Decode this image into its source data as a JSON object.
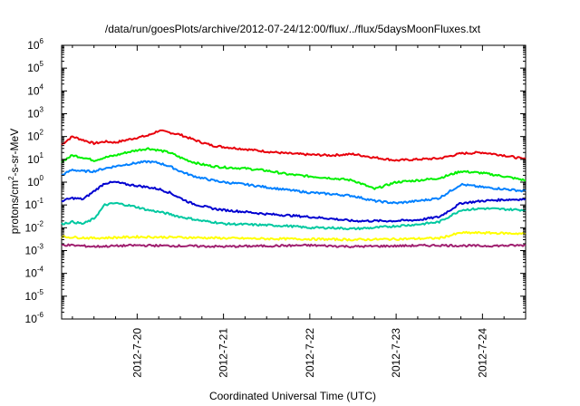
{
  "chart_data": {
    "type": "line",
    "title": "/data/run/goesPlots/archive/2012-07-24/12:00/flux/../flux/5daysMoonFluxes.txt",
    "xlabel": "Coordinated Universal Time (UTC)",
    "ylabel": {
      "base": "protons/cm",
      "sup": "2",
      "rest": "-s-sr-MeV"
    },
    "y_scale": "log",
    "ylim": [
      1e-06,
      1000000.0
    ],
    "xlim": [
      "2012-07-19T03:00",
      "2012-07-24T12:00"
    ],
    "grid": false,
    "legend": "none",
    "y_ticks": [
      {
        "base": "10",
        "exp": "-6"
      },
      {
        "base": "10",
        "exp": "-5"
      },
      {
        "base": "10",
        "exp": "-4"
      },
      {
        "base": "10",
        "exp": "-3"
      },
      {
        "base": "10",
        "exp": "-2"
      },
      {
        "base": "10",
        "exp": "-1"
      },
      {
        "base": "10",
        "exp": "0"
      },
      {
        "base": "10",
        "exp": "1"
      },
      {
        "base": "10",
        "exp": "2"
      },
      {
        "base": "10",
        "exp": "3"
      },
      {
        "base": "10",
        "exp": "4"
      },
      {
        "base": "10",
        "exp": "5"
      },
      {
        "base": "10",
        "exp": "6"
      }
    ],
    "x_ticks": [
      {
        "label": "2012-7-20",
        "at": "2012-07-20T00:00"
      },
      {
        "label": "2012-7-21",
        "at": "2012-07-21T00:00"
      },
      {
        "label": "2012-7-22",
        "at": "2012-07-22T00:00"
      },
      {
        "label": "2012-7-23",
        "at": "2012-07-23T00:00"
      },
      {
        "label": "2012-7-24",
        "at": "2012-07-24T00:00"
      }
    ],
    "series": [
      {
        "color": "#e8000b",
        "x": [
          "2012-07-19T03:00",
          "2012-07-19T06:00",
          "2012-07-19T09:00",
          "2012-07-19T12:00",
          "2012-07-19T15:00",
          "2012-07-19T18:00",
          "2012-07-19T21:00",
          "2012-07-20T00:00",
          "2012-07-20T03:00",
          "2012-07-20T06:00",
          "2012-07-20T09:00",
          "2012-07-20T12:00",
          "2012-07-20T15:00",
          "2012-07-20T18:00",
          "2012-07-20T21:00",
          "2012-07-21T00:00",
          "2012-07-21T06:00",
          "2012-07-21T12:00",
          "2012-07-21T18:00",
          "2012-07-22T00:00",
          "2012-07-22T06:00",
          "2012-07-22T12:00",
          "2012-07-22T18:00",
          "2012-07-23T00:00",
          "2012-07-23T06:00",
          "2012-07-23T12:00",
          "2012-07-23T18:00",
          "2012-07-24T00:00",
          "2012-07-24T06:00",
          "2012-07-24T12:00"
        ],
        "y": [
          45,
          100,
          70,
          50,
          60,
          55,
          70,
          90,
          110,
          180,
          150,
          120,
          80,
          55,
          40,
          35,
          28,
          22,
          18,
          16,
          15,
          17,
          12,
          9,
          10,
          11,
          18,
          20,
          15,
          10
        ]
      },
      {
        "color": "#00f000",
        "x": [
          "2012-07-19T03:00",
          "2012-07-19T06:00",
          "2012-07-19T09:00",
          "2012-07-19T12:00",
          "2012-07-19T15:00",
          "2012-07-19T18:00",
          "2012-07-19T21:00",
          "2012-07-20T00:00",
          "2012-07-20T03:00",
          "2012-07-20T06:00",
          "2012-07-20T09:00",
          "2012-07-20T12:00",
          "2012-07-20T15:00",
          "2012-07-20T18:00",
          "2012-07-20T21:00",
          "2012-07-21T00:00",
          "2012-07-21T06:00",
          "2012-07-21T12:00",
          "2012-07-21T18:00",
          "2012-07-22T00:00",
          "2012-07-22T06:00",
          "2012-07-22T12:00",
          "2012-07-22T18:00",
          "2012-07-23T00:00",
          "2012-07-23T06:00",
          "2012-07-23T12:00",
          "2012-07-23T18:00",
          "2012-07-24T00:00",
          "2012-07-24T06:00",
          "2012-07-24T12:00"
        ],
        "y": [
          8,
          15,
          12,
          9,
          12,
          15,
          20,
          25,
          30,
          25,
          20,
          12,
          8,
          6,
          5,
          4.5,
          4,
          3.2,
          2.2,
          1.8,
          1.5,
          1.2,
          0.5,
          1,
          1.2,
          1.5,
          3,
          2.5,
          1.8,
          1.2
        ]
      },
      {
        "color": "#0080ff",
        "x": [
          "2012-07-19T03:00",
          "2012-07-19T06:00",
          "2012-07-19T09:00",
          "2012-07-19T12:00",
          "2012-07-19T15:00",
          "2012-07-19T18:00",
          "2012-07-19T21:00",
          "2012-07-20T00:00",
          "2012-07-20T03:00",
          "2012-07-20T06:00",
          "2012-07-20T09:00",
          "2012-07-20T12:00",
          "2012-07-20T15:00",
          "2012-07-20T18:00",
          "2012-07-20T21:00",
          "2012-07-21T00:00",
          "2012-07-21T06:00",
          "2012-07-21T12:00",
          "2012-07-21T18:00",
          "2012-07-22T00:00",
          "2012-07-22T06:00",
          "2012-07-22T12:00",
          "2012-07-22T18:00",
          "2012-07-23T00:00",
          "2012-07-23T06:00",
          "2012-07-23T12:00",
          "2012-07-23T18:00",
          "2012-07-24T00:00",
          "2012-07-24T06:00",
          "2012-07-24T12:00"
        ],
        "y": [
          2,
          3.5,
          3,
          3,
          4,
          5,
          6,
          7,
          8,
          7,
          5,
          3,
          2,
          1.5,
          1.2,
          1,
          0.8,
          0.6,
          0.45,
          0.35,
          0.3,
          0.25,
          0.15,
          0.12,
          0.15,
          0.2,
          0.8,
          0.6,
          0.5,
          0.4
        ]
      },
      {
        "color": "#0000d0",
        "x": [
          "2012-07-19T03:00",
          "2012-07-19T06:00",
          "2012-07-19T09:00",
          "2012-07-19T12:00",
          "2012-07-19T15:00",
          "2012-07-19T18:00",
          "2012-07-19T21:00",
          "2012-07-20T00:00",
          "2012-07-20T03:00",
          "2012-07-20T06:00",
          "2012-07-20T09:00",
          "2012-07-20T12:00",
          "2012-07-20T15:00",
          "2012-07-20T18:00",
          "2012-07-20T21:00",
          "2012-07-21T00:00",
          "2012-07-21T06:00",
          "2012-07-21T12:00",
          "2012-07-21T18:00",
          "2012-07-22T00:00",
          "2012-07-22T06:00",
          "2012-07-22T12:00",
          "2012-07-22T18:00",
          "2012-07-23T00:00",
          "2012-07-23T06:00",
          "2012-07-23T12:00",
          "2012-07-23T18:00",
          "2012-07-24T00:00",
          "2012-07-24T06:00",
          "2012-07-24T12:00"
        ],
        "y": [
          0.15,
          0.2,
          0.18,
          0.4,
          0.9,
          1.0,
          0.8,
          0.7,
          0.6,
          0.5,
          0.35,
          0.2,
          0.12,
          0.09,
          0.07,
          0.06,
          0.05,
          0.04,
          0.035,
          0.03,
          0.025,
          0.02,
          0.02,
          0.02,
          0.022,
          0.03,
          0.12,
          0.15,
          0.17,
          0.18
        ]
      },
      {
        "color": "#00c8a0",
        "x": [
          "2012-07-19T03:00",
          "2012-07-19T06:00",
          "2012-07-19T09:00",
          "2012-07-19T12:00",
          "2012-07-19T15:00",
          "2012-07-19T18:00",
          "2012-07-19T21:00",
          "2012-07-20T00:00",
          "2012-07-20T03:00",
          "2012-07-20T06:00",
          "2012-07-20T09:00",
          "2012-07-20T12:00",
          "2012-07-20T15:00",
          "2012-07-20T18:00",
          "2012-07-20T21:00",
          "2012-07-21T00:00",
          "2012-07-21T06:00",
          "2012-07-21T12:00",
          "2012-07-21T18:00",
          "2012-07-22T00:00",
          "2012-07-22T06:00",
          "2012-07-22T12:00",
          "2012-07-22T18:00",
          "2012-07-23T00:00",
          "2012-07-23T06:00",
          "2012-07-23T12:00",
          "2012-07-23T18:00",
          "2012-07-24T00:00",
          "2012-07-24T06:00",
          "2012-07-24T12:00"
        ],
        "y": [
          0.015,
          0.018,
          0.015,
          0.025,
          0.1,
          0.12,
          0.1,
          0.08,
          0.06,
          0.05,
          0.04,
          0.03,
          0.025,
          0.02,
          0.018,
          0.015,
          0.014,
          0.013,
          0.012,
          0.01,
          0.01,
          0.009,
          0.01,
          0.012,
          0.014,
          0.018,
          0.06,
          0.07,
          0.065,
          0.06
        ]
      },
      {
        "color": "#ffff00",
        "x": [
          "2012-07-19T03:00",
          "2012-07-19T12:00",
          "2012-07-20T00:00",
          "2012-07-20T12:00",
          "2012-07-21T00:00",
          "2012-07-21T12:00",
          "2012-07-22T00:00",
          "2012-07-22T12:00",
          "2012-07-23T00:00",
          "2012-07-23T12:00",
          "2012-07-23T18:00",
          "2012-07-24T00:00",
          "2012-07-24T12:00"
        ],
        "y": [
          0.004,
          0.0035,
          0.004,
          0.0038,
          0.0035,
          0.0033,
          0.0032,
          0.003,
          0.0032,
          0.0035,
          0.006,
          0.006,
          0.0055
        ]
      },
      {
        "color": "#a02070",
        "x": [
          "2012-07-19T03:00",
          "2012-07-19T12:00",
          "2012-07-20T00:00",
          "2012-07-20T12:00",
          "2012-07-21T00:00",
          "2012-07-21T12:00",
          "2012-07-22T00:00",
          "2012-07-22T12:00",
          "2012-07-23T00:00",
          "2012-07-23T12:00",
          "2012-07-24T00:00",
          "2012-07-24T12:00"
        ],
        "y": [
          0.0018,
          0.0015,
          0.0017,
          0.0016,
          0.0015,
          0.0016,
          0.0017,
          0.0015,
          0.0016,
          0.0017,
          0.0016,
          0.0017
        ]
      }
    ]
  }
}
